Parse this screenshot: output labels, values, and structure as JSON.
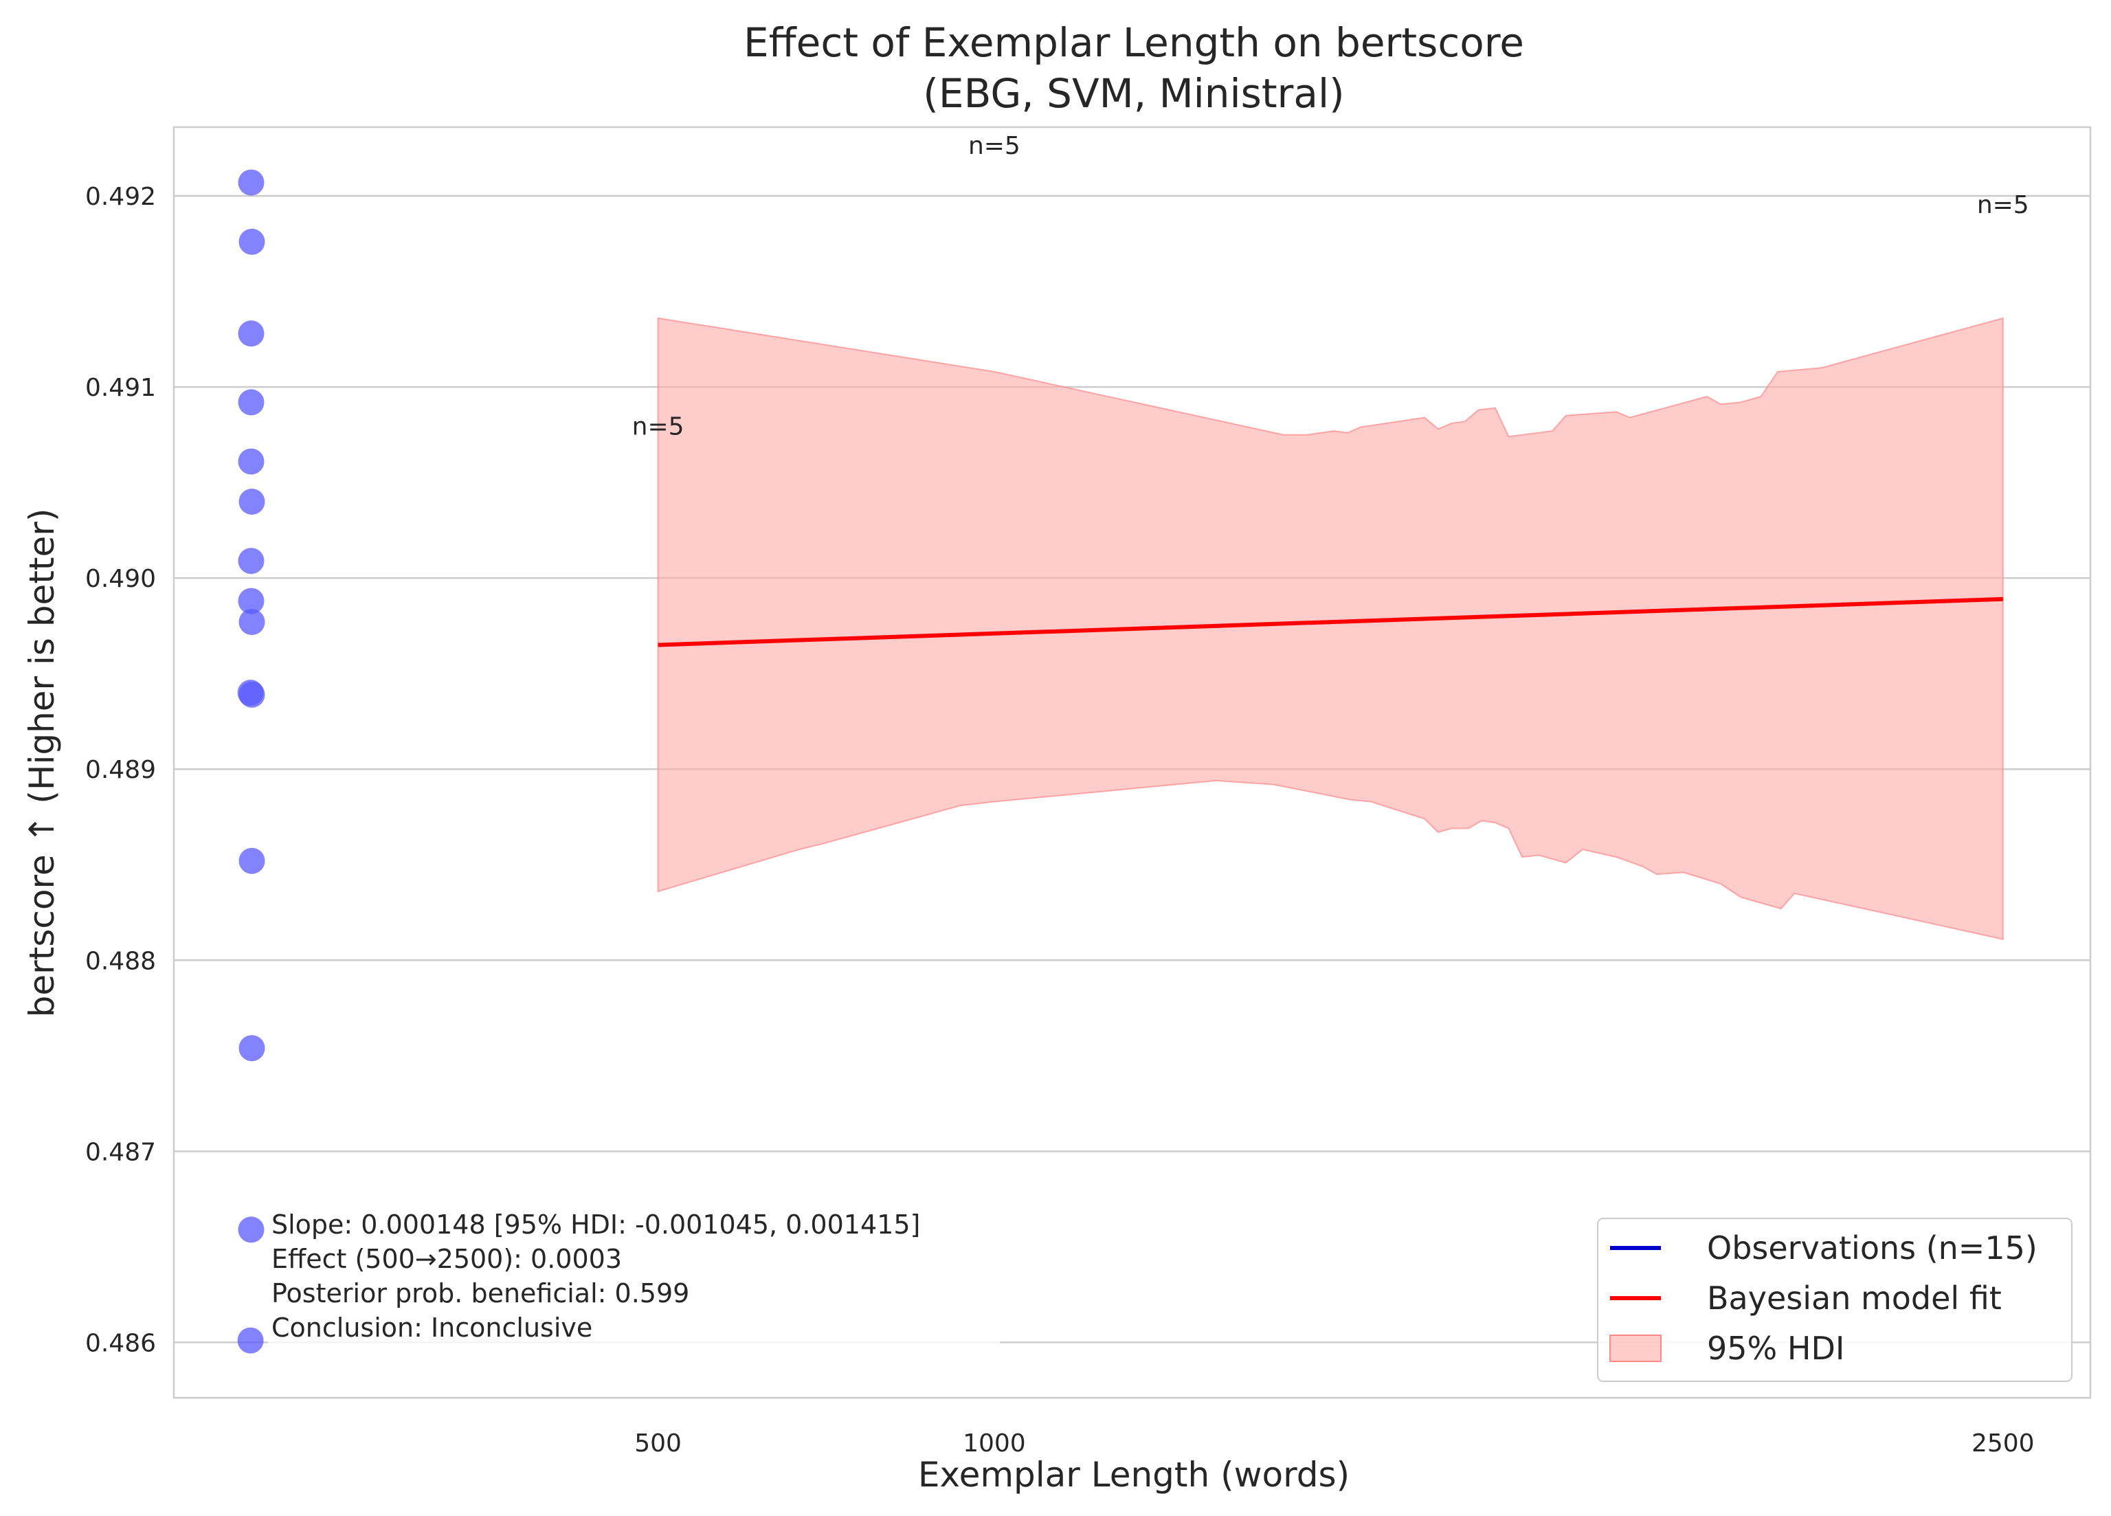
{
  "chart_data": {
    "type": "scatter",
    "title": [
      "Effect of Exemplar Length on bertscore",
      "(EBG, SVM, Ministral)"
    ],
    "xlabel": "Exemplar Length (words)",
    "ylabel": "bertscore ↑ (Higher is better)",
    "xlim": [
      -220,
      2630
    ],
    "ylim": [
      0.48571,
      0.49236
    ],
    "xticks": [
      500,
      1000,
      2500
    ],
    "xtick_labels": [
      "500",
      "1000",
      "2500"
    ],
    "yticks": [
      0.486,
      0.487,
      0.488,
      0.489,
      0.49,
      0.491,
      0.492
    ],
    "ytick_labels": [
      "0.486",
      "0.487",
      "0.488",
      "0.489",
      "0.490",
      "0.491",
      "0.492"
    ],
    "grid": true,
    "series": [
      {
        "name": "Observations (n=15)",
        "kind": "scatter",
        "color": "#5a5aff",
        "points": [
          {
            "x": -105,
            "y": 0.49207
          },
          {
            "x": -104,
            "y": 0.49176
          },
          {
            "x": -105,
            "y": 0.49128
          },
          {
            "x": -105,
            "y": 0.49092
          },
          {
            "x": -105,
            "y": 0.49061
          },
          {
            "x": -104,
            "y": 0.4904
          },
          {
            "x": -105,
            "y": 0.49009
          },
          {
            "x": -105,
            "y": 0.48988
          },
          {
            "x": -104,
            "y": 0.48977
          },
          {
            "x": -106,
            "y": 0.4894
          },
          {
            "x": -104,
            "y": 0.48939
          },
          {
            "x": -104,
            "y": 0.48852
          },
          {
            "x": -104,
            "y": 0.48754
          },
          {
            "x": -105,
            "y": 0.48659
          },
          {
            "x": -106,
            "y": 0.48601
          }
        ]
      },
      {
        "name": "Bayesian model fit",
        "kind": "line",
        "color": "#ff0000",
        "points": [
          {
            "x": 500,
            "y": 0.48965
          },
          {
            "x": 2500,
            "y": 0.48989
          }
        ]
      },
      {
        "name": "95% HDI",
        "kind": "band",
        "color": "#ffaaaa",
        "upper": [
          {
            "x": 500,
            "y": 0.49136
          },
          {
            "x": 1000,
            "y": 0.49108
          },
          {
            "x": 1430,
            "y": 0.49075
          },
          {
            "x": 1465,
            "y": 0.49075
          },
          {
            "x": 1505,
            "y": 0.49077
          },
          {
            "x": 1525,
            "y": 0.49076
          },
          {
            "x": 1545,
            "y": 0.49079
          },
          {
            "x": 1640,
            "y": 0.49084
          },
          {
            "x": 1660,
            "y": 0.49078
          },
          {
            "x": 1680,
            "y": 0.49081
          },
          {
            "x": 1700,
            "y": 0.49082
          },
          {
            "x": 1720,
            "y": 0.49088
          },
          {
            "x": 1745,
            "y": 0.49089
          },
          {
            "x": 1765,
            "y": 0.49074
          },
          {
            "x": 1830,
            "y": 0.49077
          },
          {
            "x": 1850,
            "y": 0.49085
          },
          {
            "x": 1925,
            "y": 0.49087
          },
          {
            "x": 1945,
            "y": 0.49084
          },
          {
            "x": 2060,
            "y": 0.49095
          },
          {
            "x": 2080,
            "y": 0.49091
          },
          {
            "x": 2110,
            "y": 0.49092
          },
          {
            "x": 2140,
            "y": 0.49095
          },
          {
            "x": 2165,
            "y": 0.49108
          },
          {
            "x": 2230,
            "y": 0.4911
          },
          {
            "x": 2500,
            "y": 0.49136
          }
        ],
        "lower": [
          {
            "x": 500,
            "y": 0.48836
          },
          {
            "x": 710,
            "y": 0.48858
          },
          {
            "x": 745,
            "y": 0.48861
          },
          {
            "x": 950,
            "y": 0.48881
          },
          {
            "x": 1000,
            "y": 0.48883
          },
          {
            "x": 1330,
            "y": 0.48894
          },
          {
            "x": 1415,
            "y": 0.48892
          },
          {
            "x": 1530,
            "y": 0.48884
          },
          {
            "x": 1560,
            "y": 0.48883
          },
          {
            "x": 1640,
            "y": 0.48874
          },
          {
            "x": 1660,
            "y": 0.48867
          },
          {
            "x": 1680,
            "y": 0.48869
          },
          {
            "x": 1705,
            "y": 0.48869
          },
          {
            "x": 1725,
            "y": 0.48873
          },
          {
            "x": 1745,
            "y": 0.48872
          },
          {
            "x": 1765,
            "y": 0.48869
          },
          {
            "x": 1785,
            "y": 0.48854
          },
          {
            "x": 1810,
            "y": 0.48855
          },
          {
            "x": 1850,
            "y": 0.48851
          },
          {
            "x": 1875,
            "y": 0.48858
          },
          {
            "x": 1925,
            "y": 0.48854
          },
          {
            "x": 1965,
            "y": 0.48849
          },
          {
            "x": 1985,
            "y": 0.48845
          },
          {
            "x": 2025,
            "y": 0.48846
          },
          {
            "x": 2080,
            "y": 0.4884
          },
          {
            "x": 2110,
            "y": 0.48833
          },
          {
            "x": 2170,
            "y": 0.48827
          },
          {
            "x": 2190,
            "y": 0.48835
          },
          {
            "x": 2500,
            "y": 0.48811
          }
        ]
      }
    ],
    "annotations": [
      {
        "text": "n=5",
        "x": 500,
        "y": 0.49075
      },
      {
        "text": "n=5",
        "x": 1000,
        "y": 0.49222
      },
      {
        "text": "n=5",
        "x": 2500,
        "y": 0.49191
      }
    ],
    "stats_box": [
      "Slope: 0.000148 [95% HDI: -0.001045, 0.001415]",
      "Effect (500→2500): 0.0003",
      "Posterior prob. beneficial: 0.599",
      "Conclusion: Inconclusive"
    ],
    "legend": {
      "position": "bottom-right",
      "entries": [
        {
          "label": "Observations (n=15)",
          "marker": "line",
          "color": "#0000cc"
        },
        {
          "label": "Bayesian model fit",
          "marker": "line",
          "color": "#ff0000"
        },
        {
          "label": "95% HDI",
          "marker": "patch",
          "color": "#ffaaaa"
        }
      ]
    }
  }
}
